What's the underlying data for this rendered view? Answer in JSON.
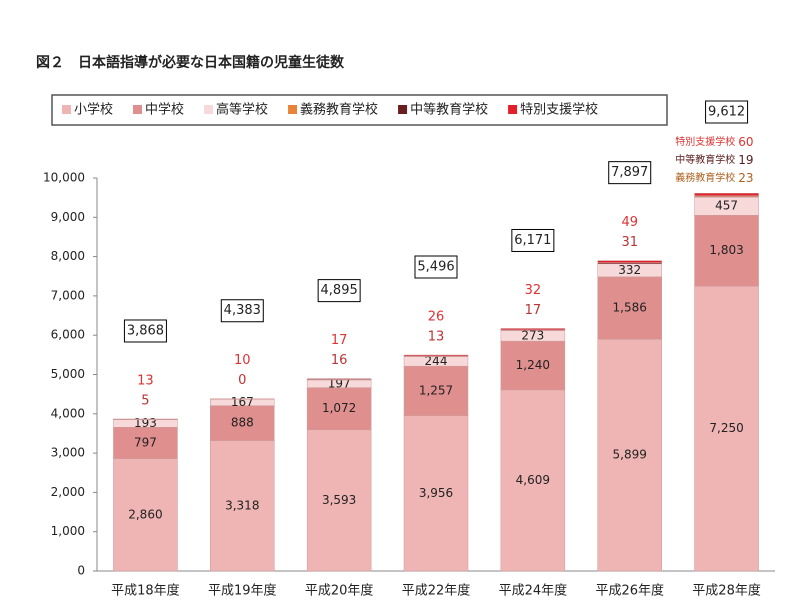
{
  "chart_data": {
    "type": "stacked_bar",
    "title": "図２　日本語指導が必要な日本国籍の児童生徒数",
    "categories": [
      "平成18年度",
      "平成19年度",
      "平成20年度",
      "平成22年度",
      "平成24年度",
      "平成26年度",
      "平成28年度"
    ],
    "series": [
      {
        "name": "小学校",
        "color": "#efb5b5",
        "values": [
          2860,
          3318,
          3593,
          3956,
          4609,
          5899,
          7250
        ],
        "value_labels": [
          "2,860",
          "3,318",
          "3,593",
          "3,956",
          "4,609",
          "5,899",
          "7,250"
        ]
      },
      {
        "name": "中学校",
        "color": "#e08f8f",
        "values": [
          797,
          888,
          1072,
          1257,
          1240,
          1586,
          1803
        ],
        "value_labels": [
          "797",
          "888",
          "1,072",
          "1,257",
          "1,240",
          "1,586",
          "1,803"
        ]
      },
      {
        "name": "高等学校",
        "color": "#f7d9d9",
        "values": [
          193,
          167,
          197,
          244,
          273,
          332,
          457
        ]
      },
      {
        "name": "義務教育学校",
        "color": "#e8843a",
        "values": [
          null,
          null,
          null,
          null,
          null,
          null,
          23
        ]
      },
      {
        "name": "中等教育学校",
        "color": "#6b1e1e",
        "values": [
          5,
          0,
          16,
          13,
          17,
          31,
          19
        ]
      },
      {
        "name": "特別支援学校",
        "color": "#e3202a",
        "values": [
          13,
          10,
          17,
          26,
          32,
          49,
          60
        ]
      }
    ],
    "totals": [
      3868,
      4383,
      4895,
      5496,
      6171,
      7897,
      9612
    ],
    "total_labels": [
      "3,868",
      "4,383",
      "4,895",
      "5,496",
      "6,171",
      "7,897",
      "9,612"
    ],
    "ylim": [
      0,
      10000
    ],
    "yticks": [
      0,
      {
        "value": 1000,
        "label": "1,000"
      },
      {
        "value": 2000,
        "label": "2,000"
      },
      {
        "value": 3000,
        "label": "3,000"
      },
      {
        "value": 4000,
        "label": "4,000"
      },
      {
        "value": 5000,
        "label": "5,000"
      },
      {
        "value": 6000,
        "label": "6,000"
      },
      {
        "value": 7000,
        "label": "7,000"
      },
      {
        "value": 8000,
        "label": "8,000"
      },
      {
        "value": 9000,
        "label": "9,000"
      },
      {
        "value": 10000,
        "label": "10,000"
      }
    ],
    "grid": false
  }
}
